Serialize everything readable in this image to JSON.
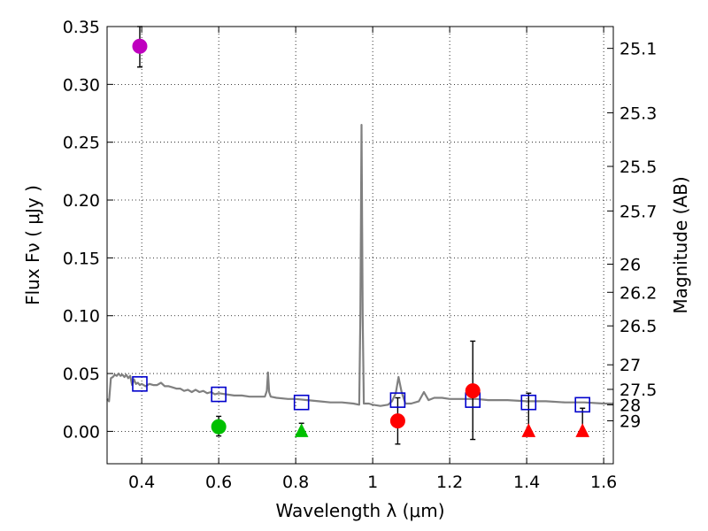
{
  "chart_data": {
    "type": "scatter",
    "title": "",
    "xlabel": "Wavelength  λ (μm)",
    "ylabel": "Flux  Fν  ( μJy )",
    "y2label": "Magnitude (AB)",
    "xlim": [
      0.31,
      1.625
    ],
    "ylim": [
      -0.028,
      0.35
    ],
    "grid": true,
    "x_ticks": [
      "0.4",
      "0.6",
      "0.8",
      "1",
      "1.2",
      "1.4",
      "1.6"
    ],
    "y_ticks": [
      "0.00",
      "0.05",
      "0.10",
      "0.15",
      "0.20",
      "0.25",
      "0.30",
      "0.35"
    ],
    "mag_ticks": [
      "25.1",
      "25.3",
      "25.5",
      "25.7",
      "26",
      "26.2",
      "26.5",
      "27",
      "27.5",
      "28",
      "29"
    ],
    "series": [
      {
        "kind": "line",
        "color": "#808080",
        "points": [
          [
            0.31,
            0.028
          ],
          [
            0.315,
            0.026
          ],
          [
            0.32,
            0.046
          ],
          [
            0.325,
            0.047
          ],
          [
            0.33,
            0.049
          ],
          [
            0.335,
            0.048
          ],
          [
            0.34,
            0.05
          ],
          [
            0.345,
            0.048
          ],
          [
            0.35,
            0.049
          ],
          [
            0.355,
            0.047
          ],
          [
            0.36,
            0.049
          ],
          [
            0.365,
            0.046
          ],
          [
            0.37,
            0.048
          ],
          [
            0.375,
            0.04
          ],
          [
            0.38,
            0.045
          ],
          [
            0.385,
            0.041
          ],
          [
            0.39,
            0.042
          ],
          [
            0.395,
            0.04
          ],
          [
            0.4,
            0.041
          ],
          [
            0.41,
            0.039
          ],
          [
            0.42,
            0.041
          ],
          [
            0.43,
            0.04
          ],
          [
            0.44,
            0.04
          ],
          [
            0.45,
            0.042
          ],
          [
            0.46,
            0.039
          ],
          [
            0.47,
            0.039
          ],
          [
            0.48,
            0.038
          ],
          [
            0.49,
            0.037
          ],
          [
            0.5,
            0.037
          ],
          [
            0.51,
            0.035
          ],
          [
            0.52,
            0.036
          ],
          [
            0.53,
            0.034
          ],
          [
            0.54,
            0.036
          ],
          [
            0.55,
            0.034
          ],
          [
            0.56,
            0.035
          ],
          [
            0.57,
            0.033
          ],
          [
            0.58,
            0.034
          ],
          [
            0.59,
            0.032
          ],
          [
            0.6,
            0.033
          ],
          [
            0.62,
            0.032
          ],
          [
            0.64,
            0.031
          ],
          [
            0.66,
            0.031
          ],
          [
            0.68,
            0.03
          ],
          [
            0.7,
            0.03
          ],
          [
            0.72,
            0.03
          ],
          [
            0.725,
            0.035
          ],
          [
            0.728,
            0.051
          ],
          [
            0.731,
            0.034
          ],
          [
            0.735,
            0.03
          ],
          [
            0.75,
            0.029
          ],
          [
            0.78,
            0.028
          ],
          [
            0.8,
            0.028
          ],
          [
            0.83,
            0.027
          ],
          [
            0.86,
            0.026
          ],
          [
            0.89,
            0.025
          ],
          [
            0.92,
            0.025
          ],
          [
            0.95,
            0.024
          ],
          [
            0.965,
            0.023
          ],
          [
            0.968,
            0.1
          ],
          [
            0.971,
            0.265
          ],
          [
            0.974,
            0.1
          ],
          [
            0.977,
            0.024
          ],
          [
            0.99,
            0.024
          ],
          [
            1.0,
            0.023
          ],
          [
            1.02,
            0.022
          ],
          [
            1.04,
            0.023
          ],
          [
            1.05,
            0.026
          ],
          [
            1.06,
            0.033
          ],
          [
            1.067,
            0.047
          ],
          [
            1.075,
            0.034
          ],
          [
            1.085,
            0.024
          ],
          [
            1.1,
            0.024
          ],
          [
            1.12,
            0.026
          ],
          [
            1.133,
            0.034
          ],
          [
            1.145,
            0.027
          ],
          [
            1.16,
            0.029
          ],
          [
            1.18,
            0.029
          ],
          [
            1.2,
            0.028
          ],
          [
            1.22,
            0.028
          ],
          [
            1.25,
            0.028
          ],
          [
            1.27,
            0.028
          ],
          [
            1.3,
            0.027
          ],
          [
            1.35,
            0.027
          ],
          [
            1.4,
            0.026
          ],
          [
            1.45,
            0.026
          ],
          [
            1.5,
            0.025
          ],
          [
            1.55,
            0.025
          ],
          [
            1.6,
            0.024
          ],
          [
            1.625,
            0.024
          ]
        ]
      },
      {
        "kind": "squares",
        "color": "#0000cc",
        "points": [
          [
            0.395,
            0.041
          ],
          [
            0.6,
            0.032
          ],
          [
            0.815,
            0.025
          ],
          [
            1.065,
            0.027
          ],
          [
            1.26,
            0.027
          ],
          [
            1.405,
            0.025
          ],
          [
            1.545,
            0.023
          ]
        ]
      },
      {
        "kind": "circles",
        "points": [
          {
            "x": 0.395,
            "y": 0.333,
            "err_low": 0.315,
            "err_high": 0.35,
            "color": "#bf00bf"
          },
          {
            "x": 0.6,
            "y": 0.004,
            "err_low": -0.004,
            "err_high": 0.013,
            "color": "#00c000"
          },
          {
            "x": 1.065,
            "y": 0.009,
            "err_low": -0.011,
            "err_high": 0.029,
            "color": "#ff0000"
          },
          {
            "x": 1.26,
            "y": 0.035,
            "err_low": -0.007,
            "err_high": 0.078,
            "color": "#ff0000"
          }
        ]
      },
      {
        "kind": "triangles",
        "points": [
          {
            "x": 0.815,
            "y": 0.0,
            "err_high": 0.007,
            "color": "#00c000"
          },
          {
            "x": 1.405,
            "y": 0.0,
            "err_high": 0.033,
            "color": "#ff0000"
          },
          {
            "x": 1.545,
            "y": 0.0,
            "err_high": 0.02,
            "color": "#ff0000"
          }
        ]
      }
    ]
  }
}
